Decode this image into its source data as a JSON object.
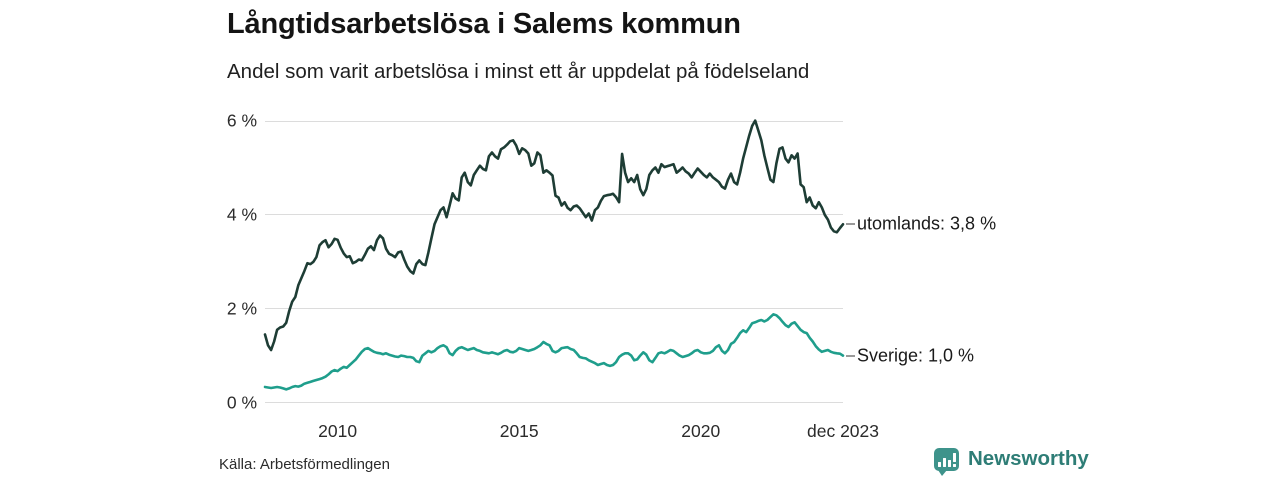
{
  "header": {
    "title": "Långtidsarbetslösa i Salems kommun",
    "subtitle": "Andel som varit arbetslösa i minst ett år uppdelat på födelseland"
  },
  "source": {
    "label": "Källa: Arbetsförmedlingen"
  },
  "branding": {
    "name": "Newsworthy",
    "text_color": "#2e7d76",
    "icon_color": "#3e938b",
    "icon": "speech-bubble-bar-chart"
  },
  "colors": {
    "gridline": "#dcdcdc",
    "utomlands_line": "#1e3d35",
    "sverige_line": "#1f9e8c",
    "tick_text": "#2b2b2b"
  },
  "chart_data": {
    "type": "line",
    "title": "Långtidsarbetslösa i Salems kommun",
    "subtitle": "Andel som varit arbetslösa i minst ett år uppdelat på födelseland",
    "x_unit": "month",
    "x_start": "2008-01",
    "x_end": "2023-12",
    "ylim": [
      0,
      6
    ],
    "grid": "horizontal",
    "legend_position": "right-of-line-end",
    "y_ticks": [
      {
        "label": "0 %",
        "value": 0
      },
      {
        "label": "2 %",
        "value": 2
      },
      {
        "label": "4 %",
        "value": 4
      },
      {
        "label": "6 %",
        "value": 6
      }
    ],
    "x_ticks": [
      {
        "label": "2010",
        "month_index": 24
      },
      {
        "label": "2015",
        "month_index": 84
      },
      {
        "label": "2020",
        "month_index": 144
      },
      {
        "label": "dec 2023",
        "month_index": 191
      }
    ],
    "series": [
      {
        "name": "utomlands",
        "label": "utomlands: 3,8 %",
        "color": "#1e3d35",
        "last_value": 3.8,
        "values": [
          1.45,
          1.22,
          1.12,
          1.3,
          1.55,
          1.6,
          1.62,
          1.7,
          1.95,
          2.15,
          2.25,
          2.5,
          2.65,
          2.8,
          2.97,
          2.95,
          3.0,
          3.1,
          3.35,
          3.42,
          3.46,
          3.31,
          3.38,
          3.49,
          3.47,
          3.3,
          3.18,
          3.1,
          3.12,
          2.97,
          3.0,
          3.05,
          3.03,
          3.15,
          3.28,
          3.33,
          3.25,
          3.46,
          3.56,
          3.5,
          3.28,
          3.17,
          3.14,
          3.1,
          3.2,
          3.22,
          3.05,
          2.9,
          2.8,
          2.75,
          2.95,
          3.03,
          2.95,
          2.93,
          3.2,
          3.5,
          3.8,
          3.95,
          4.1,
          4.16,
          3.95,
          4.2,
          4.46,
          4.35,
          4.31,
          4.8,
          4.9,
          4.7,
          4.63,
          4.85,
          4.95,
          5.05,
          4.98,
          4.95,
          5.25,
          5.33,
          5.25,
          5.2,
          5.4,
          5.44,
          5.5,
          5.57,
          5.59,
          5.48,
          5.3,
          5.42,
          5.38,
          5.31,
          5.05,
          5.1,
          5.33,
          5.27,
          4.9,
          4.95,
          4.9,
          4.84,
          4.41,
          4.37,
          4.2,
          4.27,
          4.15,
          4.1,
          4.18,
          4.2,
          4.14,
          4.05,
          3.95,
          4.03,
          3.88,
          4.1,
          4.16,
          4.3,
          4.4,
          4.42,
          4.43,
          4.45,
          4.38,
          4.27,
          5.3,
          4.9,
          4.7,
          4.78,
          4.7,
          4.85,
          4.55,
          4.42,
          4.55,
          4.85,
          4.95,
          5.01,
          4.9,
          5.08,
          5.02,
          5.04,
          5.06,
          5.08,
          4.9,
          4.95,
          5.01,
          4.93,
          4.88,
          4.8,
          4.9,
          4.99,
          4.92,
          4.85,
          4.8,
          4.88,
          4.8,
          4.75,
          4.7,
          4.6,
          4.56,
          4.75,
          4.88,
          4.7,
          4.65,
          4.9,
          5.2,
          5.45,
          5.69,
          5.9,
          6.01,
          5.8,
          5.59,
          5.27,
          5.01,
          4.75,
          4.7,
          5.1,
          5.41,
          5.44,
          5.2,
          5.12,
          5.27,
          5.2,
          5.31,
          4.65,
          4.59,
          4.27,
          4.37,
          4.2,
          4.14,
          4.27,
          4.16,
          4.0,
          3.9,
          3.73,
          3.65,
          3.63,
          3.72,
          3.8
        ]
      },
      {
        "name": "Sverige",
        "label": "Sverige: 1,0 %",
        "color": "#1f9e8c",
        "last_value": 1.0,
        "values": [
          0.33,
          0.32,
          0.31,
          0.32,
          0.33,
          0.32,
          0.3,
          0.28,
          0.3,
          0.33,
          0.35,
          0.34,
          0.36,
          0.4,
          0.42,
          0.44,
          0.46,
          0.48,
          0.5,
          0.52,
          0.55,
          0.6,
          0.66,
          0.69,
          0.67,
          0.72,
          0.76,
          0.74,
          0.8,
          0.86,
          0.92,
          1.0,
          1.08,
          1.14,
          1.16,
          1.12,
          1.08,
          1.06,
          1.05,
          1.03,
          1.05,
          1.02,
          1.0,
          0.98,
          0.97,
          1.0,
          0.99,
          0.97,
          0.97,
          0.95,
          0.88,
          0.86,
          1.0,
          1.05,
          1.1,
          1.07,
          1.1,
          1.16,
          1.2,
          1.22,
          1.18,
          1.05,
          1.01,
          1.1,
          1.16,
          1.18,
          1.15,
          1.12,
          1.14,
          1.16,
          1.12,
          1.1,
          1.07,
          1.06,
          1.05,
          1.07,
          1.05,
          1.03,
          1.06,
          1.1,
          1.12,
          1.08,
          1.07,
          1.1,
          1.16,
          1.14,
          1.12,
          1.1,
          1.12,
          1.14,
          1.18,
          1.22,
          1.29,
          1.25,
          1.22,
          1.1,
          1.07,
          1.1,
          1.16,
          1.17,
          1.18,
          1.14,
          1.12,
          1.05,
          0.97,
          0.95,
          0.94,
          0.9,
          0.87,
          0.84,
          0.8,
          0.82,
          0.84,
          0.8,
          0.78,
          0.8,
          0.86,
          0.97,
          1.02,
          1.05,
          1.05,
          1.0,
          0.9,
          0.92,
          1.0,
          1.07,
          1.02,
          0.9,
          0.86,
          0.95,
          1.05,
          1.07,
          1.05,
          1.08,
          1.12,
          1.1,
          1.05,
          1.0,
          0.97,
          0.99,
          1.01,
          1.05,
          1.1,
          1.12,
          1.07,
          1.05,
          1.05,
          1.06,
          1.1,
          1.18,
          1.22,
          1.1,
          1.05,
          1.12,
          1.25,
          1.29,
          1.38,
          1.48,
          1.54,
          1.5,
          1.59,
          1.69,
          1.71,
          1.74,
          1.76,
          1.73,
          1.76,
          1.82,
          1.88,
          1.86,
          1.8,
          1.72,
          1.65,
          1.61,
          1.68,
          1.71,
          1.63,
          1.55,
          1.5,
          1.48,
          1.38,
          1.3,
          1.2,
          1.13,
          1.08,
          1.1,
          1.12,
          1.08,
          1.06,
          1.05,
          1.04,
          1.0
        ]
      }
    ]
  }
}
